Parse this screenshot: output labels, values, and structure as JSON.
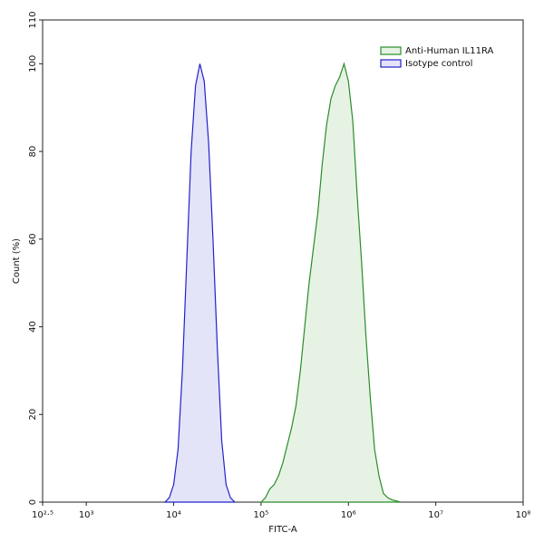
{
  "chart_data": {
    "type": "line",
    "xlabel": "FITC-A",
    "ylabel": "Count (%)",
    "xscale": "log",
    "xlim": [
      316.2,
      100000000
    ],
    "xticks": [
      {
        "value": 316.2,
        "label": "10²·⁵"
      },
      {
        "value": 1000,
        "label": "10³"
      },
      {
        "value": 10000,
        "label": "10⁴"
      },
      {
        "value": 100000,
        "label": "10⁵"
      },
      {
        "value": 1000000,
        "label": "10⁶"
      },
      {
        "value": 10000000,
        "label": "10⁷"
      },
      {
        "value": 100000000,
        "label": "10⁸"
      }
    ],
    "ylim": [
      0,
      110
    ],
    "yticks": [
      0,
      20,
      40,
      60,
      80,
      100,
      110
    ],
    "legend": "upper right",
    "series": [
      {
        "name": "Anti-Human IL11RA",
        "color": "#2a8c2a",
        "fill": "#e6f3e4",
        "x": [
          100000,
          112202,
          125893,
          141254,
          158489,
          177828,
          199526,
          223872,
          251189,
          281838,
          316228,
          354813,
          398107,
          446684,
          501187,
          562341,
          630957,
          707946,
          794328,
          891251,
          1000000,
          1122018,
          1258925,
          1412538,
          1584893,
          1778279,
          1995262,
          2238721,
          2511886,
          2818383,
          3162278,
          3981072
        ],
        "values": [
          0,
          1,
          3,
          4,
          6,
          9,
          13,
          17,
          22,
          30,
          40,
          50,
          58,
          66,
          77,
          86,
          92,
          95,
          97,
          100,
          96,
          87,
          70,
          55,
          38,
          24,
          12,
          6,
          2,
          1,
          0.5,
          0
        ]
      },
      {
        "name": "Isotype control",
        "color": "#2222cc",
        "fill": "#e4e4f8",
        "x": [
          7943,
          8913,
          10000,
          11220,
          12589,
          14125,
          15849,
          17783,
          19953,
          22387,
          25119,
          28184,
          31623,
          35481,
          39811,
          44668,
          50119
        ],
        "values": [
          0,
          1,
          4,
          12,
          30,
          55,
          80,
          95,
          100,
          96,
          82,
          60,
          35,
          14,
          4,
          1,
          0
        ]
      }
    ]
  }
}
